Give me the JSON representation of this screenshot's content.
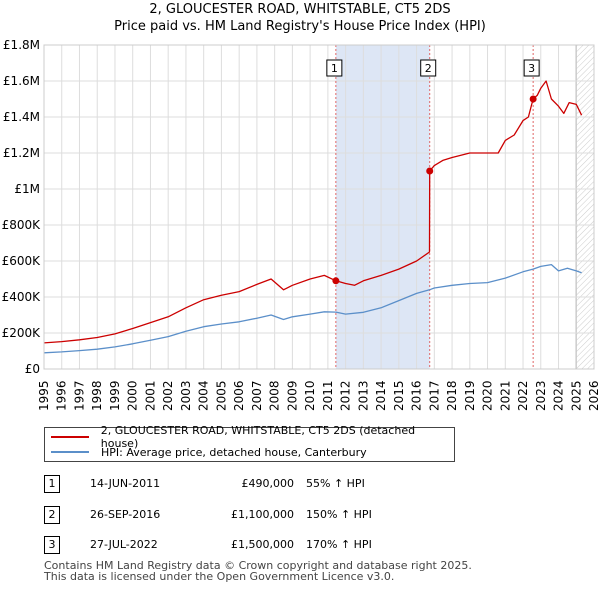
{
  "title_line1": "2, GLOUCESTER ROAD, WHITSTABLE, CT5 2DS",
  "title_line2": "Price paid vs. HM Land Registry's House Price Index (HPI)",
  "colors": {
    "property": "#cc0000",
    "hpi": "#5b8fc9",
    "sale_shade": "#dde6f5",
    "grid": "#dddddd",
    "marker_line": "#e06666"
  },
  "chart_data": {
    "type": "line",
    "xlim": [
      1995,
      2026
    ],
    "ylim": [
      0,
      1800000
    ],
    "x_ticks": [
      "1995",
      "1996",
      "1997",
      "1998",
      "1999",
      "2000",
      "2001",
      "2002",
      "2003",
      "2004",
      "2005",
      "2006",
      "2007",
      "2008",
      "2009",
      "2010",
      "2011",
      "2012",
      "2013",
      "2014",
      "2015",
      "2016",
      "2017",
      "2018",
      "2019",
      "2020",
      "2021",
      "2022",
      "2023",
      "2024",
      "2025",
      "2026"
    ],
    "y_ticks": [
      {
        "value": 0,
        "label": "£0"
      },
      {
        "value": 200000,
        "label": "£200K"
      },
      {
        "value": 400000,
        "label": "£400K"
      },
      {
        "value": 600000,
        "label": "£600K"
      },
      {
        "value": 800000,
        "label": "£800K"
      },
      {
        "value": 1000000,
        "label": "£1M"
      },
      {
        "value": 1200000,
        "label": "£1.2M"
      },
      {
        "value": 1400000,
        "label": "£1.4M"
      },
      {
        "value": 1600000,
        "label": "£1.6M"
      },
      {
        "value": 1800000,
        "label": "£1.8M"
      }
    ],
    "hatch_from": 2025.0,
    "series": [
      {
        "name": "2, GLOUCESTER ROAD, WHITSTABLE, CT5 2DS (detached house)",
        "color": "#cc0000",
        "x": [
          1995,
          1996,
          1997,
          1998,
          1999,
          2000,
          2001,
          2002,
          2003,
          2004,
          2005,
          2006,
          2007,
          2007.8,
          2008.5,
          2009,
          2010,
          2010.8,
          2011.45,
          2012,
          2012.5,
          2013,
          2014,
          2015,
          2016,
          2016.73,
          2016.74,
          2017,
          2017.5,
          2018,
          2019,
          2020,
          2020.6,
          2021,
          2021.5,
          2022,
          2022.3,
          2022.57,
          2022.8,
          2023,
          2023.3,
          2023.6,
          2024,
          2024.3,
          2024.6,
          2025,
          2025.3
        ],
        "y": [
          145000,
          152000,
          162000,
          175000,
          195000,
          225000,
          258000,
          290000,
          340000,
          385000,
          410000,
          430000,
          470000,
          500000,
          440000,
          465000,
          500000,
          520000,
          490000,
          475000,
          465000,
          490000,
          520000,
          555000,
          600000,
          650000,
          1100000,
          1130000,
          1160000,
          1175000,
          1200000,
          1200000,
          1200000,
          1270000,
          1300000,
          1380000,
          1400000,
          1500000,
          1520000,
          1560000,
          1600000,
          1500000,
          1460000,
          1420000,
          1480000,
          1470000,
          1410000
        ]
      },
      {
        "name": "HPI: Average price, detached house, Canterbury",
        "color": "#5b8fc9",
        "x": [
          1995,
          1996,
          1997,
          1998,
          1999,
          2000,
          2001,
          2002,
          2003,
          2004,
          2005,
          2006,
          2007,
          2007.8,
          2008.5,
          2009,
          2010,
          2010.8,
          2011.45,
          2012,
          2013,
          2014,
          2015,
          2016,
          2016.73,
          2017,
          2018,
          2019,
          2020,
          2021,
          2022,
          2022.57,
          2023,
          2023.6,
          2024,
          2024.5,
          2025,
          2025.3
        ],
        "y": [
          90000,
          95000,
          102000,
          110000,
          123000,
          140000,
          160000,
          180000,
          210000,
          235000,
          250000,
          262000,
          282000,
          300000,
          275000,
          290000,
          305000,
          318000,
          316000,
          305000,
          315000,
          340000,
          380000,
          420000,
          440000,
          450000,
          465000,
          475000,
          480000,
          505000,
          540000,
          555000,
          570000,
          580000,
          545000,
          560000,
          545000,
          535000
        ]
      }
    ],
    "sales": [
      {
        "label": "1",
        "x": 2011.45,
        "y": 490000
      },
      {
        "label": "2",
        "x": 2016.74,
        "y": 1100000
      },
      {
        "label": "3",
        "x": 2022.57,
        "y": 1500000
      }
    ]
  },
  "legend": {
    "property": "2, GLOUCESTER ROAD, WHITSTABLE, CT5 2DS (detached house)",
    "hpi": "HPI: Average price, detached house, Canterbury"
  },
  "sales_table": [
    {
      "num": "1",
      "date": "14-JUN-2011",
      "price": "£490,000",
      "hpi": "55% ↑ HPI"
    },
    {
      "num": "2",
      "date": "26-SEP-2016",
      "price": "£1,100,000",
      "hpi": "150% ↑ HPI"
    },
    {
      "num": "3",
      "date": "27-JUL-2022",
      "price": "£1,500,000",
      "hpi": "170% ↑ HPI"
    }
  ],
  "footer_line1": "Contains HM Land Registry data © Crown copyright and database right 2025.",
  "footer_line2": "This data is licensed under the Open Government Licence v3.0."
}
